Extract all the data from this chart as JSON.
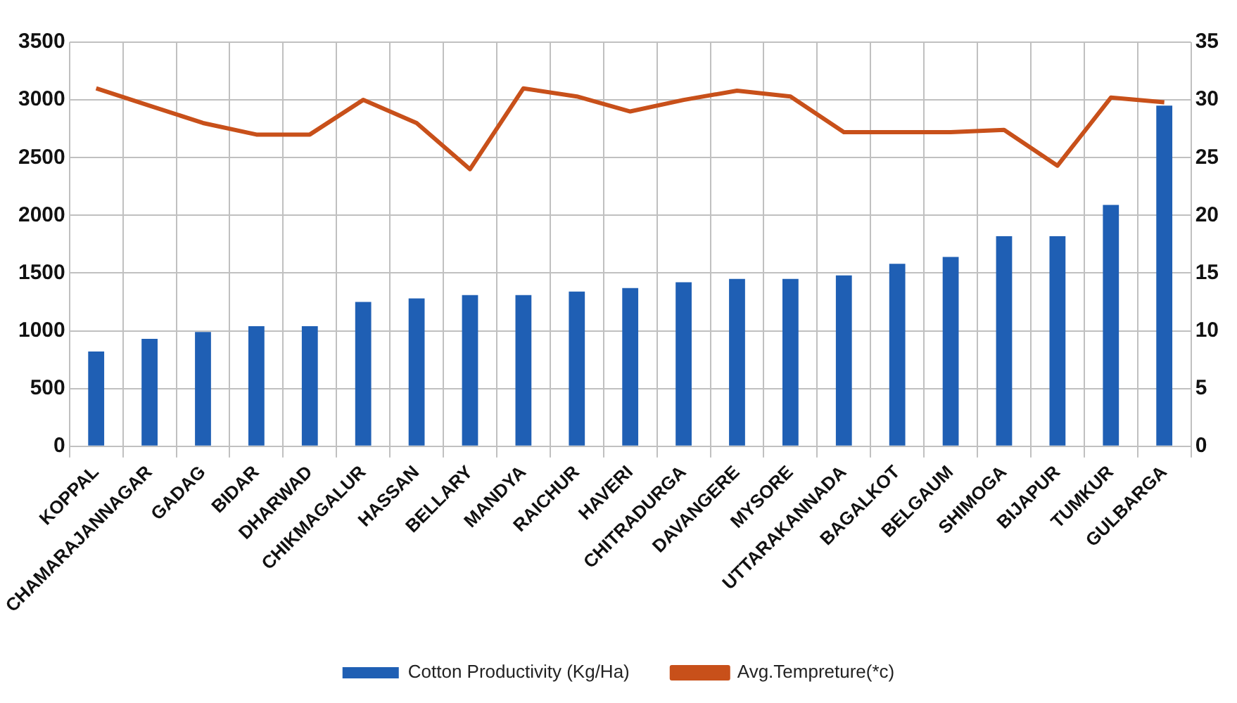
{
  "chart_data": {
    "type": "bar",
    "categories": [
      "KOPPAL",
      "CHAMARAJANNAGAR",
      "GADAG",
      "BIDAR",
      "DHARWAD",
      "CHIKMAGALUR",
      "HASSAN",
      "BELLARY",
      "MANDYA",
      "RAICHUR",
      "HAVERI",
      "CHITRADURGA",
      "DAVANGERE",
      "MYSORE",
      "UTTARAKANNADA",
      "BAGALKOT",
      "BELGAUM",
      "SHIMOGA",
      "BIJAPUR",
      "TUMKUR",
      "GULBARGA"
    ],
    "series": [
      {
        "name": "Cotton Productivity (Kg/Ha)",
        "color": "#1f5fb4",
        "values": [
          820,
          930,
          990,
          1040,
          1040,
          1250,
          1280,
          1310,
          1310,
          1340,
          1370,
          1420,
          1450,
          1450,
          1480,
          1580,
          1640,
          1820,
          1820,
          2090,
          2950
        ]
      },
      {
        "name": "Avg.Tempreture(*c)",
        "type": "line",
        "axis": "y2",
        "color": "#c8501a",
        "values": [
          31,
          29.5,
          28,
          27,
          27,
          30,
          28,
          24,
          31,
          30.3,
          29,
          30,
          30.8,
          30.3,
          27.2,
          27.2,
          27.2,
          27.4,
          24.3,
          30.2,
          29.8
        ]
      }
    ],
    "ylim": [
      0,
      3500
    ],
    "yticks": [
      0,
      500,
      1000,
      1500,
      2000,
      2500,
      3000,
      3500
    ],
    "y2lim": [
      0,
      35
    ],
    "y2ticks": [
      0,
      5,
      10,
      15,
      20,
      25,
      30,
      35
    ],
    "grid": true,
    "legend": "bottom",
    "marker": "none",
    "line_style": "solid"
  }
}
